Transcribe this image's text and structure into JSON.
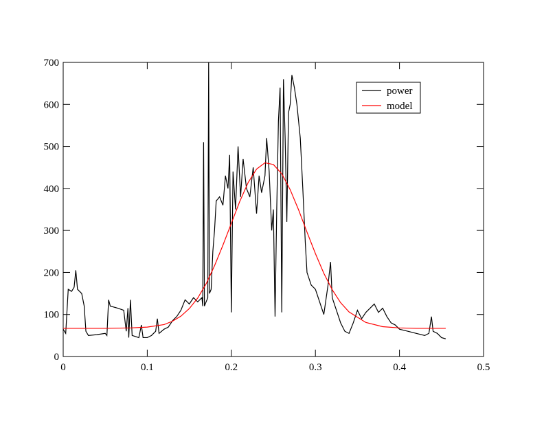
{
  "chart_data": {
    "type": "line",
    "xlim": [
      0,
      0.5
    ],
    "xticks": [
      0,
      0.1,
      0.2,
      0.3,
      0.4,
      0.5
    ],
    "ylim": [
      0,
      700
    ],
    "yticks": [
      0,
      100,
      200,
      300,
      400,
      500,
      600,
      700
    ],
    "legend": "top-right",
    "series": [
      {
        "name": "power",
        "color": "#000000",
        "x": [
          0,
          0.003,
          0.006,
          0.01,
          0.013,
          0.015,
          0.017,
          0.022,
          0.025,
          0.027,
          0.03,
          0.04,
          0.05,
          0.052,
          0.054,
          0.056,
          0.065,
          0.072,
          0.075,
          0.077,
          0.078,
          0.08,
          0.082,
          0.09,
          0.093,
          0.095,
          0.1,
          0.105,
          0.11,
          0.112,
          0.114,
          0.12,
          0.125,
          0.13,
          0.135,
          0.14,
          0.145,
          0.15,
          0.155,
          0.16,
          0.165,
          0.166,
          0.167,
          0.168,
          0.17,
          0.172,
          0.173,
          0.174,
          0.176,
          0.178,
          0.18,
          0.182,
          0.186,
          0.19,
          0.193,
          0.196,
          0.198,
          0.2,
          0.202,
          0.205,
          0.208,
          0.211,
          0.214,
          0.218,
          0.222,
          0.226,
          0.23,
          0.233,
          0.236,
          0.24,
          0.242,
          0.245,
          0.248,
          0.25,
          0.252,
          0.254,
          0.256,
          0.258,
          0.26,
          0.262,
          0.264,
          0.266,
          0.268,
          0.27,
          0.272,
          0.275,
          0.278,
          0.282,
          0.285,
          0.288,
          0.29,
          0.295,
          0.3,
          0.305,
          0.31,
          0.315,
          0.318,
          0.32,
          0.325,
          0.33,
          0.335,
          0.34,
          0.345,
          0.35,
          0.355,
          0.36,
          0.365,
          0.37,
          0.375,
          0.38,
          0.385,
          0.39,
          0.395,
          0.4,
          0.41,
          0.42,
          0.43,
          0.435,
          0.438,
          0.44,
          0.445,
          0.45,
          0.455
        ],
        "values": [
          65,
          55,
          160,
          155,
          165,
          205,
          160,
          150,
          120,
          60,
          50,
          52,
          55,
          50,
          135,
          120,
          115,
          110,
          60,
          115,
          45,
          135,
          50,
          45,
          75,
          45,
          45,
          50,
          60,
          90,
          55,
          65,
          70,
          85,
          95,
          110,
          135,
          125,
          140,
          130,
          140,
          120,
          510,
          120,
          130,
          140,
          700,
          150,
          160,
          250,
          300,
          370,
          380,
          360,
          430,
          400,
          480,
          105,
          440,
          350,
          500,
          380,
          470,
          400,
          380,
          450,
          340,
          430,
          390,
          430,
          520,
          440,
          300,
          350,
          95,
          350,
          560,
          640,
          105,
          660,
          520,
          320,
          580,
          600,
          670,
          640,
          600,
          520,
          400,
          270,
          200,
          170,
          160,
          130,
          100,
          170,
          225,
          140,
          110,
          80,
          60,
          55,
          80,
          110,
          90,
          105,
          115,
          125,
          105,
          115,
          95,
          80,
          75,
          65,
          60,
          55,
          50,
          55,
          95,
          60,
          55,
          45,
          42
        ]
      },
      {
        "name": "model",
        "color": "#ff0000",
        "x": [
          0,
          0.05,
          0.08,
          0.1,
          0.12,
          0.13,
          0.14,
          0.15,
          0.16,
          0.17,
          0.18,
          0.19,
          0.2,
          0.21,
          0.22,
          0.23,
          0.24,
          0.25,
          0.26,
          0.27,
          0.28,
          0.29,
          0.3,
          0.31,
          0.32,
          0.33,
          0.34,
          0.36,
          0.38,
          0.4,
          0.42,
          0.455
        ],
        "values": [
          67,
          67,
          68,
          70,
          76,
          84,
          96,
          114,
          139,
          173,
          216,
          265,
          317,
          369,
          414,
          446,
          461,
          457,
          435,
          397,
          349,
          296,
          245,
          198,
          159,
          128,
          106,
          81,
          71,
          68,
          67,
          67
        ]
      }
    ]
  }
}
